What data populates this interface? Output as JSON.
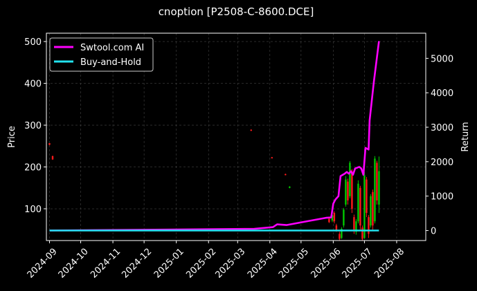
{
  "chart_data": {
    "type": "line",
    "title": "cnoption [P2508-C-8600.DCE]",
    "ylabel_left": "Price",
    "ylabel_right": "Return",
    "ylim_left": [
      24,
      520
    ],
    "ylim_right": [
      -290,
      5730
    ],
    "yticks_left": [
      100,
      200,
      300,
      400,
      500
    ],
    "yticks_right": [
      0,
      1000,
      2000,
      3000,
      4000,
      5000
    ],
    "x_range": [
      "2024-08-29",
      "2025-08-29"
    ],
    "xticks": [
      "2024-09",
      "2024-10",
      "2024-11",
      "2024-12",
      "2025-01",
      "2025-02",
      "2025-03",
      "2025-04",
      "2025-05",
      "2025-06",
      "2025-07",
      "2025-08"
    ],
    "grid": true,
    "legend_position": "top-left",
    "colors": {
      "background": "#000000",
      "ai": "#ff00ff",
      "hold": "#22e3f0",
      "up": "#00c800",
      "down": "#ff1a1a",
      "grid": "#444444"
    },
    "series": [
      {
        "name": "Swtool.com AI",
        "axis": "right",
        "points": [
          [
            "2024-09-01",
            0
          ],
          [
            "2025-03-17",
            50
          ],
          [
            "2025-04-04",
            100
          ],
          [
            "2025-04-08",
            180
          ],
          [
            "2025-04-17",
            160
          ],
          [
            "2025-05-05",
            260
          ],
          [
            "2025-05-25",
            370
          ],
          [
            "2025-05-30",
            380
          ],
          [
            "2025-06-01",
            780
          ],
          [
            "2025-06-03",
            900
          ],
          [
            "2025-06-06",
            1000
          ],
          [
            "2025-06-08",
            1580
          ],
          [
            "2025-06-12",
            1650
          ],
          [
            "2025-06-14",
            1700
          ],
          [
            "2025-06-16",
            1650
          ],
          [
            "2025-06-18",
            1720
          ],
          [
            "2025-06-20",
            1620
          ],
          [
            "2025-06-22",
            1800
          ],
          [
            "2025-06-26",
            1850
          ],
          [
            "2025-06-28",
            1800
          ],
          [
            "2025-06-30",
            1620
          ],
          [
            "2025-07-02",
            2400
          ],
          [
            "2025-07-05",
            2350
          ],
          [
            "2025-07-06",
            3200
          ],
          [
            "2025-07-10",
            4300
          ],
          [
            "2025-07-15",
            5500
          ]
        ]
      },
      {
        "name": "Buy-and-Hold",
        "axis": "right",
        "points": [
          [
            "2024-09-01",
            0
          ],
          [
            "2025-07-15",
            0
          ]
        ]
      }
    ],
    "price_candles": [
      {
        "date": "2024-09-01",
        "open": 257,
        "close": 253,
        "high": 257,
        "low": 252
      },
      {
        "date": "2024-09-04",
        "open": 226,
        "close": 218,
        "high": 227,
        "low": 217
      },
      {
        "date": "2025-03-14",
        "open": 289,
        "close": 287,
        "high": 290,
        "low": 286
      },
      {
        "date": "2025-04-03",
        "open": 223,
        "close": 222,
        "high": 224,
        "low": 221
      },
      {
        "date": "2025-04-16",
        "open": 183,
        "close": 181,
        "high": 184,
        "low": 180
      },
      {
        "date": "2025-04-20",
        "open": 150,
        "close": 153,
        "high": 154,
        "low": 149
      },
      {
        "date": "2025-05-28",
        "open": 76,
        "close": 68,
        "high": 78,
        "low": 66
      },
      {
        "date": "2025-05-31",
        "open": 72,
        "close": 85,
        "high": 90,
        "low": 68
      },
      {
        "date": "2025-06-02",
        "open": 90,
        "close": 70,
        "high": 94,
        "low": 65
      },
      {
        "date": "2025-06-04",
        "open": 60,
        "close": 50,
        "high": 64,
        "low": 45
      },
      {
        "date": "2025-06-07",
        "open": 40,
        "close": 28,
        "high": 45,
        "low": 25
      },
      {
        "date": "2025-06-09",
        "open": 30,
        "close": 52,
        "high": 56,
        "low": 28
      },
      {
        "date": "2025-06-11",
        "open": 60,
        "close": 98,
        "high": 102,
        "low": 55
      },
      {
        "date": "2025-06-13",
        "open": 110,
        "close": 170,
        "high": 178,
        "low": 105
      },
      {
        "date": "2025-06-15",
        "open": 165,
        "close": 120,
        "high": 172,
        "low": 110
      },
      {
        "date": "2025-06-17",
        "open": 130,
        "close": 210,
        "high": 214,
        "low": 125
      },
      {
        "date": "2025-06-19",
        "open": 190,
        "close": 100,
        "high": 195,
        "low": 90
      },
      {
        "date": "2025-06-21",
        "open": 80,
        "close": 50,
        "high": 86,
        "low": 40
      },
      {
        "date": "2025-06-23",
        "open": 45,
        "close": 70,
        "high": 75,
        "low": 38
      },
      {
        "date": "2025-06-25",
        "open": 70,
        "close": 160,
        "high": 168,
        "low": 65
      },
      {
        "date": "2025-06-27",
        "open": 150,
        "close": 60,
        "high": 155,
        "low": 50
      },
      {
        "date": "2025-06-29",
        "open": 55,
        "close": 28,
        "high": 60,
        "low": 25
      },
      {
        "date": "2025-07-01",
        "open": 30,
        "close": 180,
        "high": 188,
        "low": 28
      },
      {
        "date": "2025-07-03",
        "open": 170,
        "close": 90,
        "high": 176,
        "low": 80
      },
      {
        "date": "2025-07-05",
        "open": 80,
        "close": 40,
        "high": 85,
        "low": 30
      },
      {
        "date": "2025-07-07",
        "open": 60,
        "close": 130,
        "high": 135,
        "low": 55
      },
      {
        "date": "2025-07-09",
        "open": 140,
        "close": 60,
        "high": 146,
        "low": 50
      },
      {
        "date": "2025-07-11",
        "open": 70,
        "close": 220,
        "high": 226,
        "low": 65
      },
      {
        "date": "2025-07-13",
        "open": 210,
        "close": 120,
        "high": 215,
        "low": 110
      },
      {
        "date": "2025-07-15",
        "open": 110,
        "close": 190,
        "high": 225,
        "low": 90
      }
    ]
  }
}
